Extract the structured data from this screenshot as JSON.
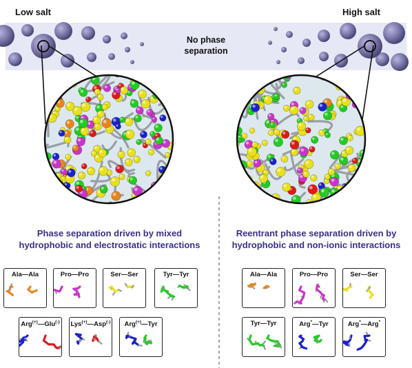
{
  "labels": {
    "low_salt": "Low salt",
    "high_salt": "High salt",
    "no_phase_line1": "No phase",
    "no_phase_line2": "separation"
  },
  "left_panel": {
    "heading_line1": "Phase separation driven by mixed",
    "heading_line2": "hydrophobic and electrostatic interactions",
    "pairs": [
      {
        "a": "Ala",
        "b": "Ala",
        "ca": "#e8861a",
        "cb": "#e8861a"
      },
      {
        "a": "Pro",
        "b": "Pro",
        "ca": "#cc33cc",
        "cb": "#cc33cc"
      },
      {
        "a": "Ser",
        "b": "Ser",
        "ca": "#e8e01a",
        "cb": "#e8e01a"
      },
      {
        "a": "Tyr",
        "b": "Tyr",
        "ca": "#22cc22",
        "cb": "#22cc22"
      },
      {
        "a": "Arg",
        "sa": "(+)",
        "b": "Glu",
        "sb": "(-)",
        "ca": "#1a22cc",
        "cb": "#dd1a1a"
      },
      {
        "a": "Lys",
        "sa": "(+)",
        "b": "Asp",
        "sb": "(-)",
        "ca": "#1a22cc",
        "cb": "#dd1a1a"
      },
      {
        "a": "Arg",
        "sa": "(+)",
        "b": "Tyr",
        "ca": "#1a22cc",
        "cb": "#22cc22"
      }
    ]
  },
  "right_panel": {
    "heading_line1": "Reentrant phase separation driven by",
    "heading_line2": "hydrophobic and non-ionic interactions",
    "pairs": [
      {
        "a": "Ala",
        "b": "Ala",
        "ca": "#e8861a",
        "cb": "#e8861a"
      },
      {
        "a": "Pro",
        "b": "Pro",
        "ca": "#cc33cc",
        "cb": "#cc33cc"
      },
      {
        "a": "Ser",
        "b": "Ser",
        "ca": "#e8e01a",
        "cb": "#e8e01a"
      },
      {
        "a": "Tyr",
        "b": "Tyr",
        "ca": "#22cc22",
        "cb": "#22cc22"
      },
      {
        "a": "Arg",
        "sa": "*",
        "b": "Tyr",
        "ca": "#1a22cc",
        "cb": "#22cc22"
      },
      {
        "a": "Arg",
        "sa": "*",
        "b": "Arg",
        "sb": "*",
        "ca": "#1a22cc",
        "cb": "#1a22cc"
      }
    ]
  },
  "colors": {
    "band": "#e6e8f5",
    "droplet": "#7a76a8",
    "heading": "#3a2f8a",
    "bead_palette": [
      "#e8e01a",
      "#22cc22",
      "#cc33cc",
      "#dd1a1a",
      "#1a22cc",
      "#e8861a"
    ]
  }
}
